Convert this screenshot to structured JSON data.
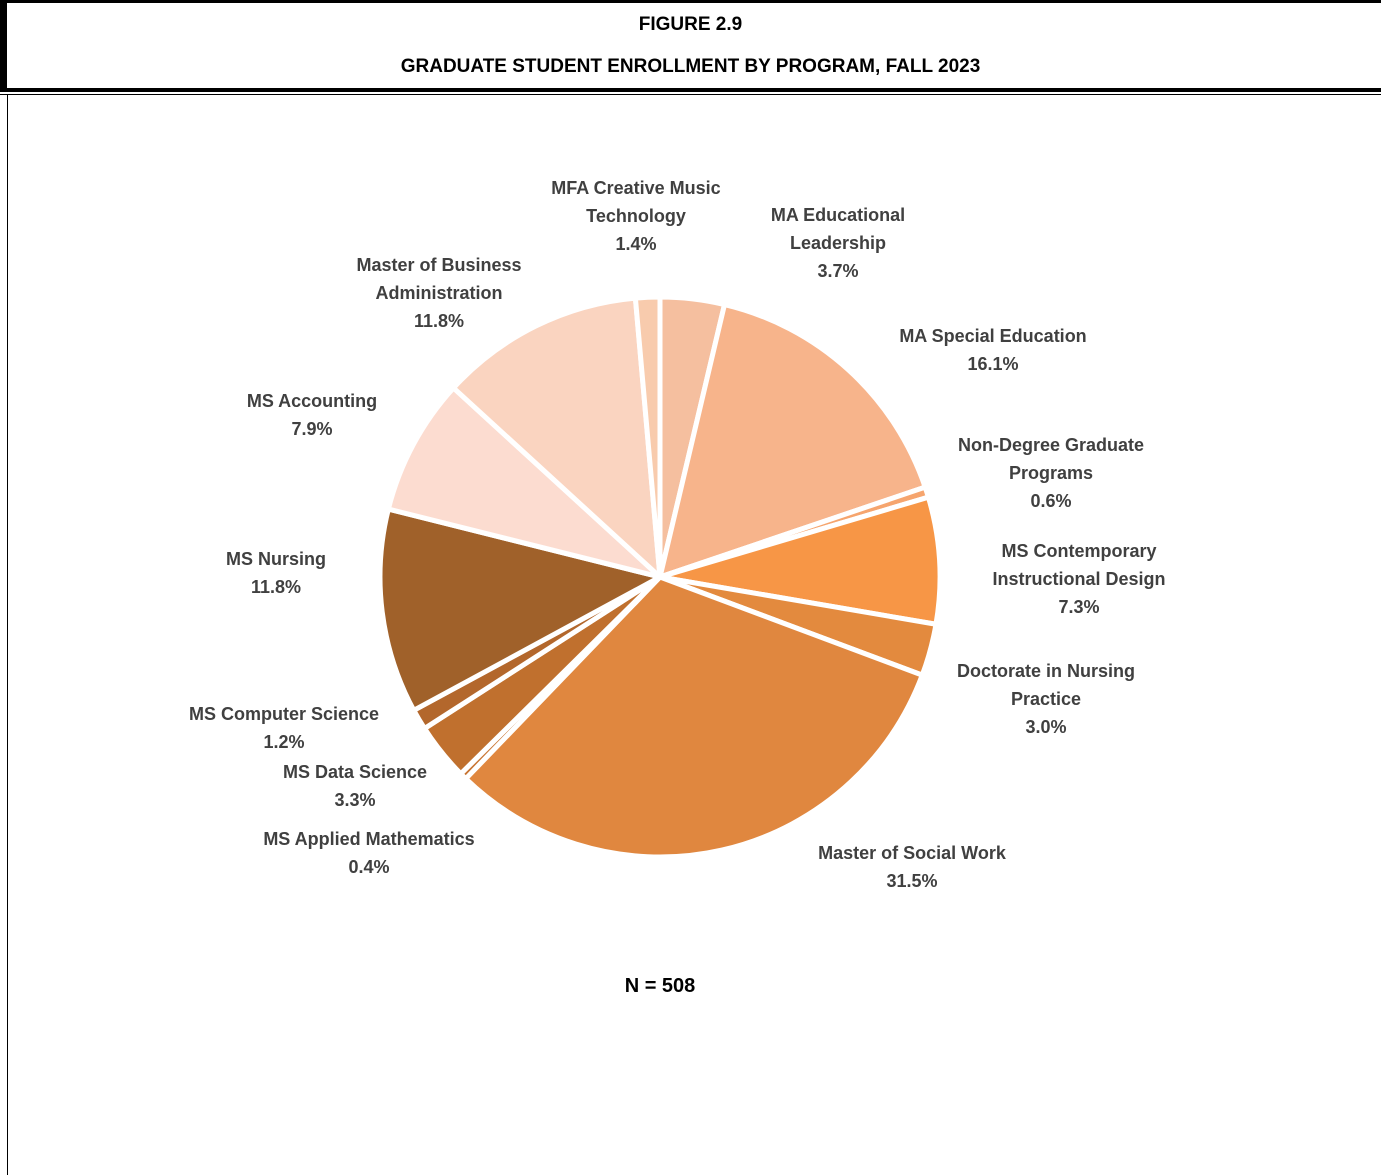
{
  "chart_data": {
    "type": "pie",
    "title": "FIGURE 2.9",
    "subtitle": "GRADUATE STUDENT ENROLLMENT BY PROGRAM, FALL 2023",
    "categories": [
      "MA Educational Leadership",
      "MA Special Education",
      "Non-Degree Graduate Programs",
      "MS Contemporary Instructional Design",
      "Doctorate in Nursing Practice",
      "Master of Social Work",
      "MS Applied Mathematics",
      "MS Data Science",
      "MS Computer Science",
      "MS Nursing",
      "MS Accounting",
      "Master of Business Administration",
      "MFA Creative Music Technology"
    ],
    "values": [
      3.7,
      16.1,
      0.6,
      7.3,
      3.0,
      31.5,
      0.4,
      3.3,
      1.2,
      11.8,
      7.9,
      11.8,
      1.4
    ],
    "value_labels": [
      "3.7%",
      "16.1%",
      "0.6%",
      "7.3%",
      "3.0%",
      "31.5%",
      "0.4%",
      "3.3%",
      "1.2%",
      "11.8%",
      "7.9%",
      "11.8%",
      "1.4%"
    ],
    "colors": [
      "#f5bf9f",
      "#f7b48b",
      "#f6a56e",
      "#f79646",
      "#e38a3e",
      "#e0873f",
      "#c87533",
      "#c0702e",
      "#b3672c",
      "#a0612a",
      "#fcdcd0",
      "#fad4c0",
      "#f8cbad"
    ],
    "note": "N = 508"
  }
}
